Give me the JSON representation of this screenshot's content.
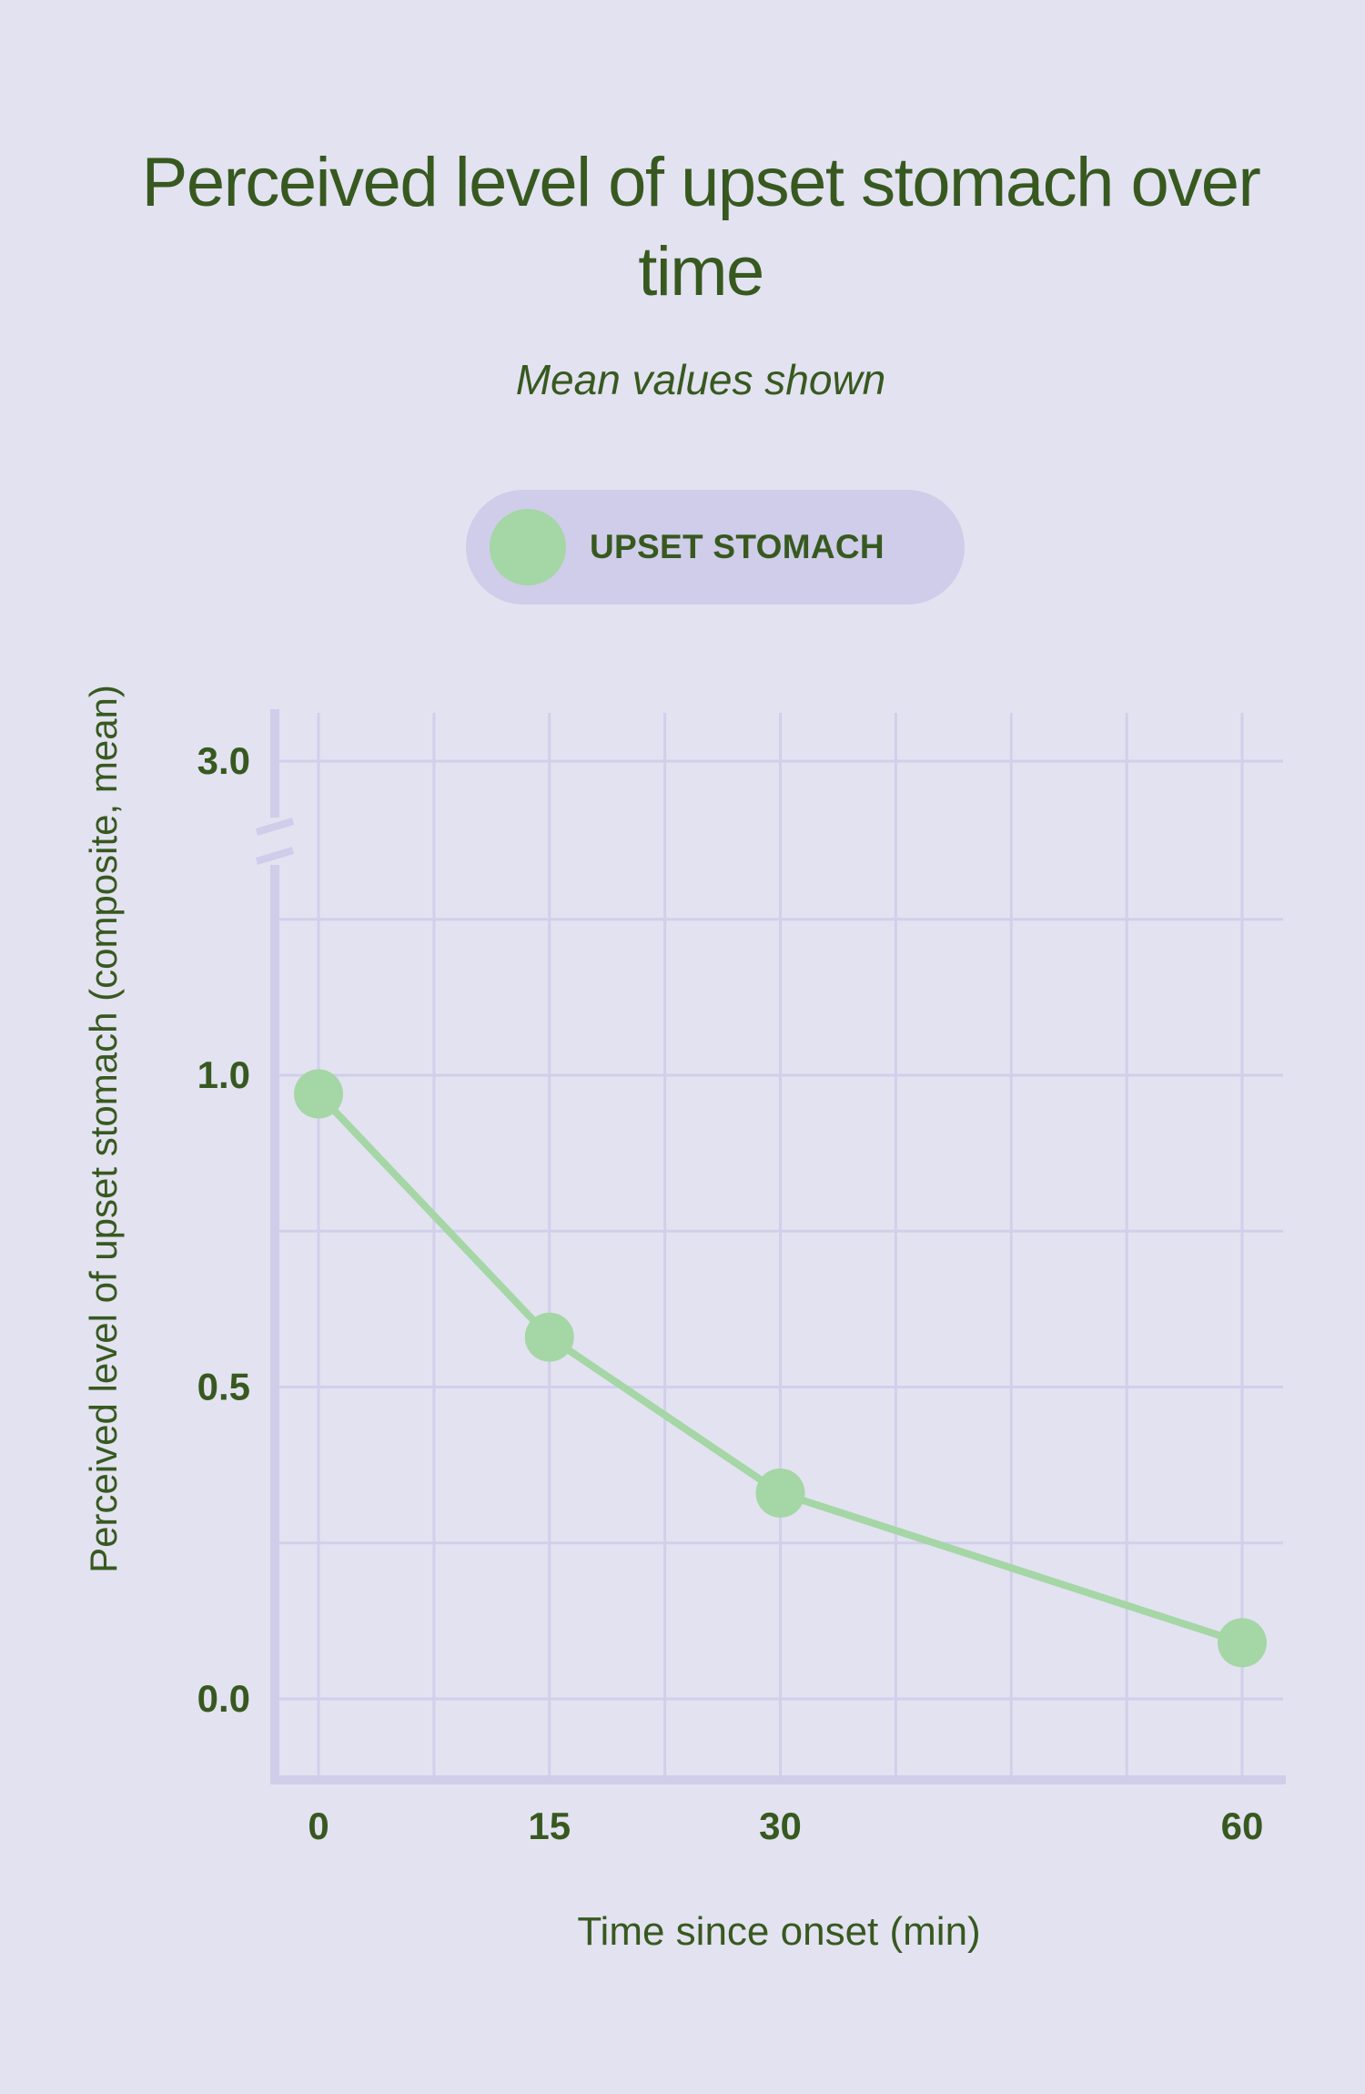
{
  "chart_data": {
    "type": "line",
    "title": "Perceived level of upset stomach over time",
    "subtitle": "Mean values shown",
    "xlabel": "Time since onset (min)",
    "ylabel": "Perceived level of upset stomach (composite, mean)",
    "x": [
      0,
      15,
      30,
      60
    ],
    "x_ticks": [
      "0",
      "15",
      "30",
      "60"
    ],
    "y_ticks": [
      "0.0",
      "0.5",
      "1.0",
      "3.0"
    ],
    "y_axis_break": "between 1.0 and 3.0",
    "series": [
      {
        "name": "UPSET STOMACH",
        "color": "#a5d6a5",
        "values": [
          0.97,
          0.58,
          0.33,
          0.09
        ]
      }
    ],
    "legend": "top-center",
    "grid": true
  },
  "colors": {
    "background": "#e3e2f1",
    "text": "#37591f",
    "grid": "#d1cfea",
    "axis": "#cfcde9",
    "series": "#a5d6a5"
  }
}
